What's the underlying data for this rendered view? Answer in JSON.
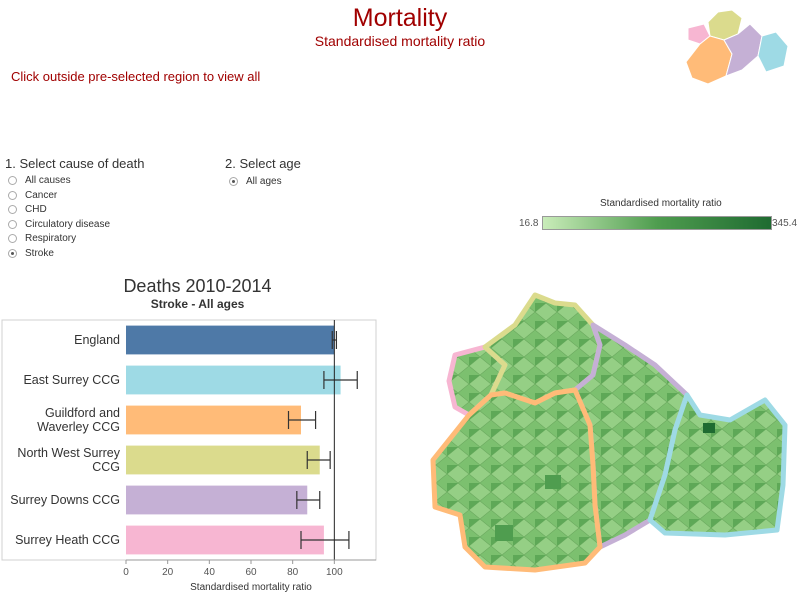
{
  "header": {
    "title": "Mortality",
    "subtitle": "Standardised mortality ratio",
    "click_hint": "Click outside pre-selected region to view all"
  },
  "ccg_buttons": [
    {
      "label": "East Surrey CCG",
      "color": "#9edae5"
    },
    {
      "label": "Guildford and Waverley CCG",
      "color": "#ffbb78"
    },
    {
      "label": "North West Surrey CCG",
      "color": "#dbdb8d"
    },
    {
      "label": "Surrey Downs CCG",
      "color": "#c5b0d5"
    },
    {
      "label": "Surrey Heath CCG",
      "color": "#f7b6d2"
    }
  ],
  "filters": {
    "cause": {
      "label": "1. Select cause of death",
      "options": [
        "All causes",
        "Cancer",
        "CHD",
        "Circulatory disease",
        "Respiratory",
        "Stroke"
      ],
      "selected": "Stroke"
    },
    "age": {
      "label": "2. Select age",
      "options": [
        "All ages"
      ],
      "selected": "All ages"
    }
  },
  "legend": {
    "title": "Standardised mortality ratio",
    "min": "16.8",
    "max": "345.4",
    "colors": [
      "#c9ecb9",
      "#4f9d4f",
      "#1f6b31"
    ]
  },
  "chart": {
    "title": "Deaths 2010-2014",
    "subtitle": "Stroke - All ages"
  },
  "chart_data": {
    "type": "bar",
    "orientation": "horizontal",
    "categories": [
      "England",
      "East Surrey CCG",
      "Guildford and Waverley CCG",
      "North West Surrey CCG",
      "Surrey Downs CCG",
      "Surrey Heath CCG"
    ],
    "values": [
      100,
      103,
      84,
      93,
      87,
      95
    ],
    "ci_low": [
      99,
      95,
      78,
      87,
      82,
      84
    ],
    "ci_high": [
      101,
      111,
      91,
      98,
      93,
      107
    ],
    "colors": [
      "#4e79a7",
      "#9edae5",
      "#ffbb78",
      "#dbdb8d",
      "#c5b0d5",
      "#f7b6d2"
    ],
    "xlabel": "Standardised mortality ratio",
    "xlim": [
      0,
      120
    ],
    "xticks": [
      0,
      20,
      40,
      60,
      80,
      100
    ],
    "reference_line": 100
  },
  "map": {
    "region_outline_colors": [
      "#9edae5",
      "#ffbb78",
      "#dbdb8d",
      "#c5b0d5",
      "#f7b6d2"
    ]
  }
}
